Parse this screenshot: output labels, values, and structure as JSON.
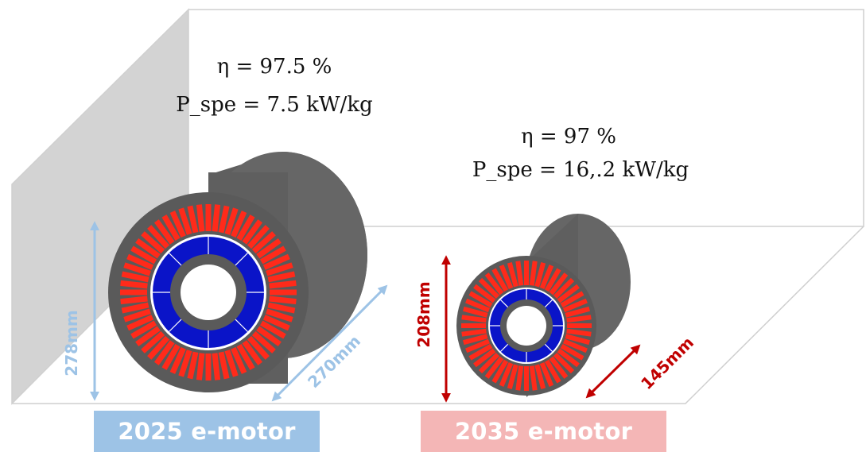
{
  "motor_2025": {
    "caption": "2025 e-motor",
    "efficiency": "η = 97.5 %",
    "specific_power": "P_spe = 7.5 kW/kg",
    "height_label": "278mm",
    "length_label": "270mm",
    "accent_color": "#9dc3e6"
  },
  "motor_2035": {
    "caption": "2035 e-motor",
    "efficiency": "η = 97 %",
    "specific_power": "P_spe = 16,.2 kW/kg",
    "height_label": "208mm",
    "length_label": "145mm",
    "accent_color": "#c00000"
  },
  "colors": {
    "stator_slots": "#ff2a1a",
    "rotor": "#0a14c8",
    "housing": "#5f5f5f",
    "wall": "#d3d3d3"
  }
}
